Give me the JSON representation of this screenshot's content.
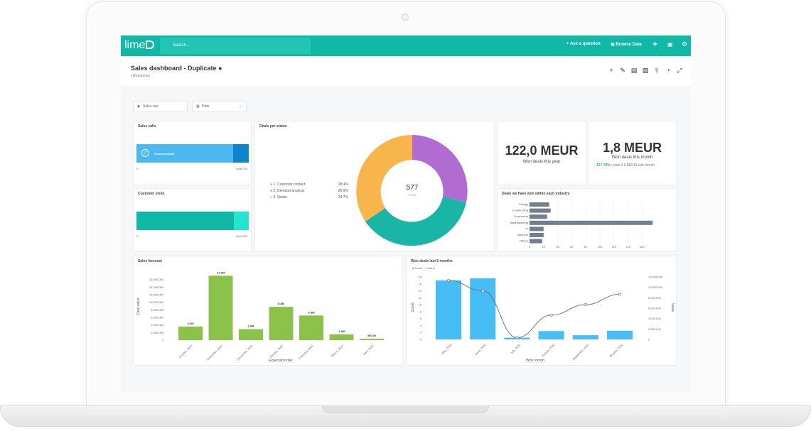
{
  "header": {
    "logo": "lime",
    "search_placeholder": "Search...",
    "ask_question": "Ask a question",
    "browse_data": "Browse Data"
  },
  "dashboard": {
    "title": "Sales dashboard - Duplicate",
    "collection": "Resources",
    "filters": [
      "Sales rep",
      "Date"
    ]
  },
  "sales_calls": {
    "title": "Sales calls",
    "bar_label": "Goal exceeded",
    "start": "0",
    "goal": "Goal 200"
  },
  "customer_visits": {
    "title": "Customer visits",
    "start": "0",
    "goal": "Goal 150"
  },
  "deals_status": {
    "title": "Deals per status",
    "total": "577",
    "total_label": "TOTAL",
    "legend": [
      {
        "label": "1. Customer contact",
        "pct": "28.4%",
        "color": "#b26bd3"
      },
      {
        "label": "2. Demand analysis",
        "pct": "36.9%",
        "color": "#19b6a6"
      },
      {
        "label": "3. Quote",
        "pct": "34.7%",
        "color": "#f7b54b"
      }
    ]
  },
  "kpis": [
    {
      "value": "122,0 MEUR",
      "label": "Won deals this year"
    },
    {
      "value": "1,8 MEUR",
      "label": "Won deals this month",
      "change": "107.78%",
      "compare": "• was 0,9 MEUR last month"
    }
  ],
  "chart_data": [
    {
      "type": "bar",
      "title": "Sales forecast",
      "xlabel": "Expected order",
      "ylabel": "Deal value",
      "categories": [
        "October, 2020",
        "November, 2020",
        "December, 2020",
        "January, 2021",
        "February, 2021",
        "March, 2021",
        "April, 2021"
      ],
      "values": [
        3600000,
        17000000,
        2900000,
        8800000,
        6500000,
        1500000,
        350000
      ],
      "data_labels": [
        "3.6M",
        "17.0M",
        "2.9M",
        "8.8M",
        "6.5M",
        "1.5M",
        "350.0k"
      ],
      "yticks": [
        "0",
        "2,000,000",
        "4,000,000",
        "6,000,000",
        "8,000,000",
        "10,000,000",
        "12,000,000",
        "14,000,000",
        "16,000,000"
      ],
      "ylim": [
        0,
        18000000
      ]
    },
    {
      "type": "bar",
      "title": "Deals we have won within each industry",
      "orientation": "horizontal",
      "categories": [
        "Energy",
        "Constructing",
        "Goverment",
        "Manufactoring",
        "IT",
        "Machine",
        "Others"
      ],
      "values": [
        28,
        30,
        25,
        175,
        20,
        20,
        18
      ],
      "xticks": [
        "0",
        "20",
        "40",
        "60",
        "80",
        "100",
        "120",
        "140",
        "160"
      ],
      "xlim": [
        0,
        180
      ]
    },
    {
      "type": "bar",
      "title": "Won deals last 6 months",
      "xlabel": "Won month",
      "ylabel": "Count",
      "y2label": "Value",
      "categories": [
        "May, 2020",
        "June, 2020",
        "July, 2020",
        "August, 2020",
        "September, 2020",
        "October, 2020"
      ],
      "series": [
        {
          "name": "Count",
          "type": "line",
          "values": [
            17,
            14,
            0.5,
            7,
            10,
            13
          ]
        },
        {
          "name": "Value",
          "type": "bar",
          "values": [
            17,
            17.6,
            0.5,
            2.4,
            1.2,
            2.5
          ]
        }
      ],
      "yticks": [
        "0",
        "2",
        "4",
        "6",
        "8",
        "10",
        "12",
        "14",
        "16",
        "18"
      ],
      "y2ticks": [
        "0",
        "2,000,000",
        "4,000,000",
        "6,000,000",
        "8,000,000",
        "10,000,000",
        "12,000,000"
      ],
      "ylim": [
        0,
        18
      ]
    }
  ]
}
